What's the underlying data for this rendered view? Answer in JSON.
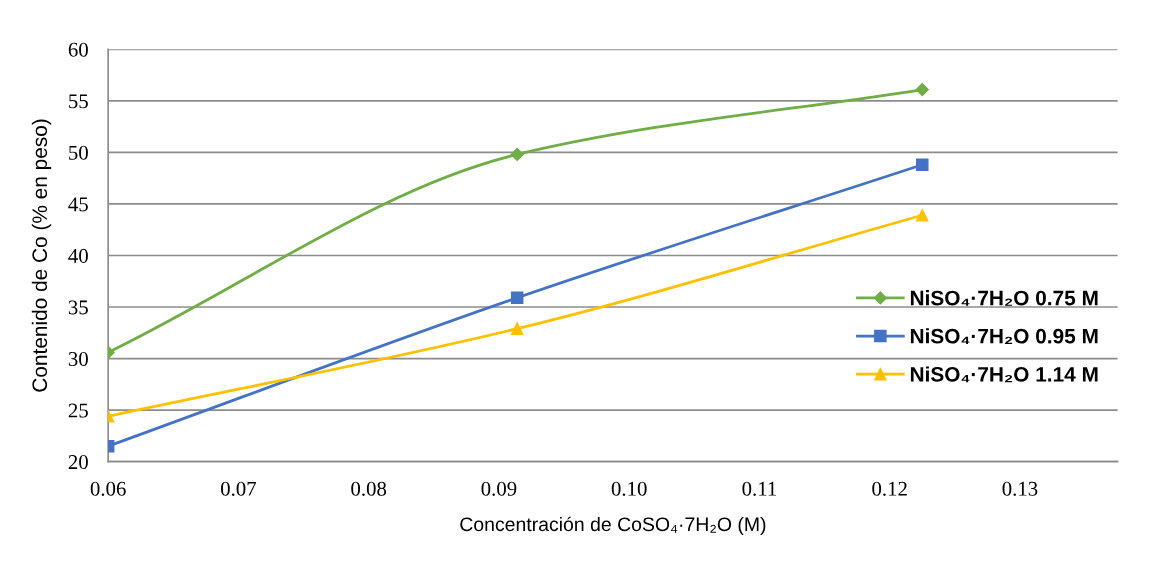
{
  "chart_data": {
    "type": "line",
    "xlabel": "Concentración de CoSO₄·7H₂O (M)",
    "ylabel": "Contenido de Co (% en peso)",
    "series": [
      {
        "name": "NiSO₄·7H₂O 0.75 M",
        "color": "#70ad47",
        "marker": "diamond",
        "x": [
          0.06,
          0.0914,
          0.1225
        ],
        "values": [
          30.6,
          49.8,
          56.1
        ]
      },
      {
        "name": "NiSO₄·7H₂O 0.95 M",
        "color": "#4472c4",
        "marker": "square",
        "x": [
          0.06,
          0.0914,
          0.1225
        ],
        "values": [
          21.5,
          35.9,
          48.8
        ]
      },
      {
        "name": "NiSO₄·7H₂O 1.14 M",
        "color": "#ffc000",
        "marker": "triangle",
        "x": [
          0.06,
          0.0914,
          0.1225
        ],
        "values": [
          24.4,
          32.9,
          43.9
        ]
      }
    ],
    "xlim": [
      0.06,
      0.1375
    ],
    "xticks": [
      {
        "value": 0.06,
        "label": "0.06"
      },
      {
        "value": 0.07,
        "label": "0.07"
      },
      {
        "value": 0.08,
        "label": "0.08"
      },
      {
        "value": 0.09,
        "label": "0.09"
      },
      {
        "value": 0.1,
        "label": "0.10"
      },
      {
        "value": 0.11,
        "label": "0.11"
      },
      {
        "value": 0.12,
        "label": "0.12"
      },
      {
        "value": 0.13,
        "label": "0.13"
      }
    ],
    "ylim": [
      20,
      60
    ],
    "yticks": [
      20,
      25,
      30,
      35,
      40,
      45,
      50,
      55,
      60
    ],
    "grid": "y",
    "legend": "right"
  }
}
